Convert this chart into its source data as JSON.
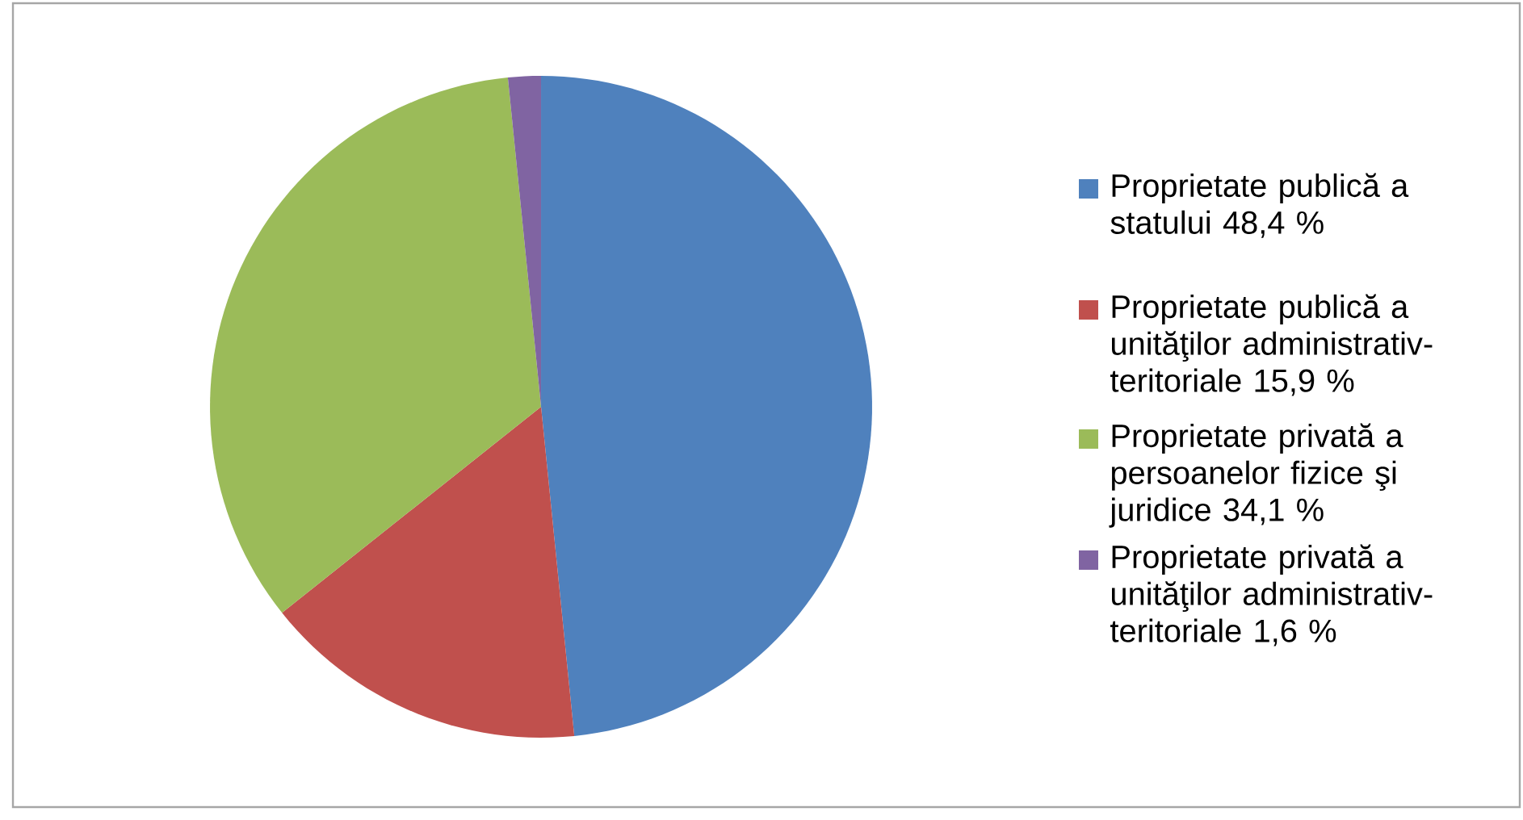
{
  "chart_data": {
    "type": "pie",
    "categories": [
      "Proprietate publică a statului 48,4 %",
      "Proprietate publică a unităţilor administrativ-teritoriale 15,9 %",
      "Proprietate privată a persoanelor fizice şi juridice 34,1 %",
      "Proprietate privată a unităţilor administrativ-teritoriale 1,6 %"
    ],
    "values": [
      48.4,
      15.9,
      34.1,
      1.6
    ],
    "colors": [
      "#4f81bd",
      "#c0504d",
      "#9bbb59",
      "#8064a2"
    ],
    "legend": "right"
  }
}
